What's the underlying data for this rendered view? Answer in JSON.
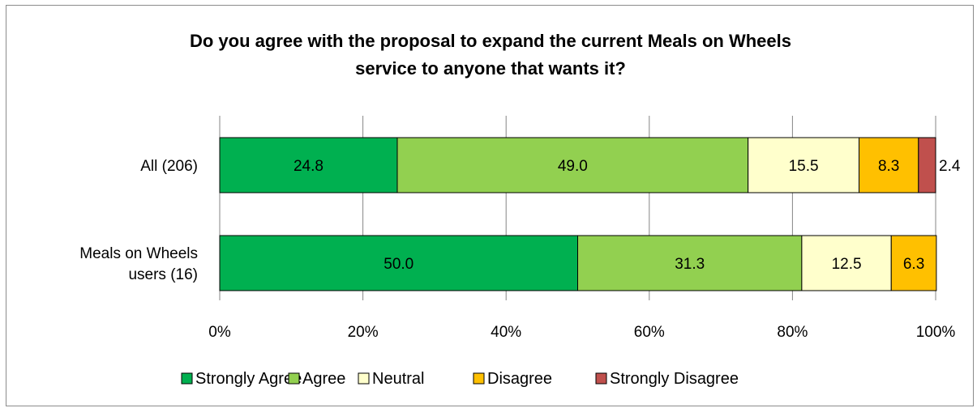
{
  "chart_data": {
    "type": "bar",
    "orientation": "horizontal",
    "stacked": true,
    "title_lines": [
      "Do you agree with the proposal to expand the current Meals on Wheels",
      "service to anyone that wants it?"
    ],
    "categories": [
      "All (206)",
      "Meals on Wheels users (16)"
    ],
    "category_lines": [
      [
        "All (206)"
      ],
      [
        "Meals on Wheels",
        "users (16)"
      ]
    ],
    "series": [
      {
        "name": "Strongly Agree",
        "values": [
          24.8,
          50.0
        ],
        "labels": [
          "24.8",
          "50.0"
        ],
        "color": "#00b050"
      },
      {
        "name": "Agree",
        "values": [
          49.0,
          31.3
        ],
        "labels": [
          "49.0",
          "31.3"
        ],
        "color": "#92d050"
      },
      {
        "name": "Neutral",
        "values": [
          15.5,
          12.5
        ],
        "labels": [
          "15.5",
          "12.5"
        ],
        "color": "#ffffcc"
      },
      {
        "name": "Disagree",
        "values": [
          8.3,
          6.3
        ],
        "labels": [
          "8.3",
          "6.3"
        ],
        "color": "#ffc000"
      },
      {
        "name": "Strongly Disagree",
        "values": [
          2.4,
          0
        ],
        "labels": [
          "2.4",
          ""
        ],
        "color": "#c0504d"
      }
    ],
    "xlim": [
      0,
      100
    ],
    "x_ticks": [
      0,
      20,
      40,
      60,
      80,
      100
    ],
    "x_tick_labels": [
      "0%",
      "20%",
      "40%",
      "60%",
      "80%",
      "100%"
    ],
    "grid": true,
    "legend_position": "bottom"
  }
}
